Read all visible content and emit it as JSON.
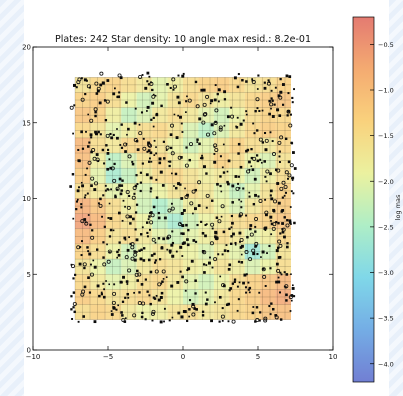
{
  "chart_data": {
    "type": "heatmap",
    "title": "Plates: 242 Star density: 10 angle max resid.: 8.2e-01",
    "xlabel": "",
    "ylabel": "",
    "xlim": [
      -10,
      10
    ],
    "ylim": [
      0,
      20
    ],
    "x_ticks": [
      -10,
      -5,
      0,
      5,
      10
    ],
    "y_ticks": [
      0,
      5,
      10,
      15,
      20
    ],
    "x_tick_labels": [
      "−10",
      "−5",
      "0",
      "5",
      "10"
    ],
    "y_tick_labels": [
      "0",
      "5",
      "10",
      "15",
      "20"
    ],
    "grid": true,
    "colorbar": {
      "label": "log mas",
      "range": [
        -4.2,
        -0.2
      ],
      "ticks": [
        -0.5,
        -1.0,
        -1.5,
        -2.0,
        -2.5,
        -3.0,
        -3.5,
        -4.0
      ],
      "tick_labels": [
        "−0.5",
        "−1.0",
        "−1.5",
        "−2.0",
        "−2.5",
        "−3.0",
        "−3.5",
        "−4.0"
      ],
      "colormap": [
        "#3a4dc2",
        "#3e8ddb",
        "#4ec8e0",
        "#8fe7b0",
        "#e3ec7a",
        "#f7c04a",
        "#f08a3a",
        "#d9473a"
      ]
    },
    "cells": {
      "x_range": [
        -7.2,
        7.2
      ],
      "y_range": [
        2.0,
        18.0
      ],
      "nx": 14,
      "ny": 16,
      "log_mas_values": [
        [
          -1.6,
          -1.4,
          -1.3,
          -1.5,
          -1.7,
          -2.0,
          -1.8,
          -1.5,
          -1.3,
          -1.2,
          -1.4,
          -1.6,
          -1.5,
          -1.3
        ],
        [
          -1.3,
          -1.2,
          -1.5,
          -1.9,
          -2.2,
          -2.0,
          -1.6,
          -1.4,
          -1.6,
          -1.8,
          -1.6,
          -1.4,
          -1.2,
          -1.1
        ],
        [
          -1.1,
          -1.3,
          -1.8,
          -2.3,
          -2.1,
          -1.7,
          -1.5,
          -1.7,
          -2.0,
          -2.2,
          -1.9,
          -1.5,
          -1.3,
          -1.4
        ],
        [
          -1.4,
          -1.6,
          -2.0,
          -1.8,
          -1.5,
          -1.4,
          -1.6,
          -2.1,
          -2.4,
          -2.1,
          -1.7,
          -1.4,
          -1.2,
          -1.3
        ],
        [
          -0.9,
          -1.5,
          -1.7,
          -1.4,
          -1.3,
          -1.6,
          -1.9,
          -2.2,
          -2.0,
          -1.6,
          -1.3,
          -1.5,
          -1.7,
          -1.4
        ],
        [
          -1.0,
          -1.8,
          -2.4,
          -2.1,
          -1.6,
          -1.4,
          -1.7,
          -1.9,
          -1.6,
          -1.3,
          -1.5,
          -1.9,
          -2.1,
          -1.6
        ],
        [
          -1.2,
          -2.0,
          -2.6,
          -2.3,
          -1.8,
          -1.5,
          -1.4,
          -1.6,
          -1.8,
          -1.7,
          -1.9,
          -2.2,
          -1.8,
          -1.5
        ],
        [
          -1.5,
          -1.7,
          -2.0,
          -1.9,
          -2.1,
          -1.9,
          -1.6,
          -1.5,
          -1.7,
          -2.0,
          -2.3,
          -2.0,
          -1.6,
          -1.3
        ],
        [
          -0.8,
          -1.1,
          -1.5,
          -1.8,
          -2.2,
          -2.5,
          -2.2,
          -1.8,
          -1.6,
          -1.9,
          -2.1,
          -1.7,
          -1.4,
          -1.2
        ],
        [
          -0.6,
          -0.9,
          -1.4,
          -1.6,
          -1.9,
          -2.3,
          -2.6,
          -2.2,
          -1.9,
          -1.7,
          -1.5,
          -1.4,
          -1.3,
          -1.1
        ],
        [
          -0.9,
          -1.2,
          -1.6,
          -1.5,
          -1.7,
          -2.0,
          -2.2,
          -2.0,
          -1.8,
          -1.5,
          -1.7,
          -2.0,
          -1.8,
          -1.4
        ],
        [
          -1.3,
          -1.5,
          -1.9,
          -2.2,
          -1.9,
          -1.7,
          -1.8,
          -1.9,
          -2.1,
          -1.8,
          -2.0,
          -2.7,
          -2.2,
          -1.6
        ],
        [
          -1.6,
          -1.9,
          -2.3,
          -2.1,
          -1.7,
          -1.5,
          -1.6,
          -1.8,
          -1.9,
          -1.6,
          -1.8,
          -2.1,
          -1.9,
          -1.5
        ],
        [
          -1.4,
          -1.7,
          -2.0,
          -1.8,
          -1.5,
          -1.4,
          -1.7,
          -2.0,
          -2.2,
          -1.9,
          -1.5,
          -1.3,
          -1.1,
          -0.9
        ],
        [
          -1.2,
          -1.4,
          -1.6,
          -1.5,
          -1.4,
          -1.6,
          -1.9,
          -2.2,
          -2.0,
          -1.7,
          -1.4,
          -1.2,
          -0.9,
          -0.7
        ],
        [
          -1.5,
          -1.3,
          -1.4,
          -1.7,
          -1.9,
          -1.8,
          -1.6,
          -1.5,
          -1.7,
          -1.6,
          -1.4,
          -1.3,
          -1.1,
          -1.0
        ]
      ]
    },
    "stars": {
      "count_shown": 900,
      "x_range": [
        -7.5,
        7.5
      ],
      "y_range": [
        1.8,
        18.3
      ]
    }
  }
}
